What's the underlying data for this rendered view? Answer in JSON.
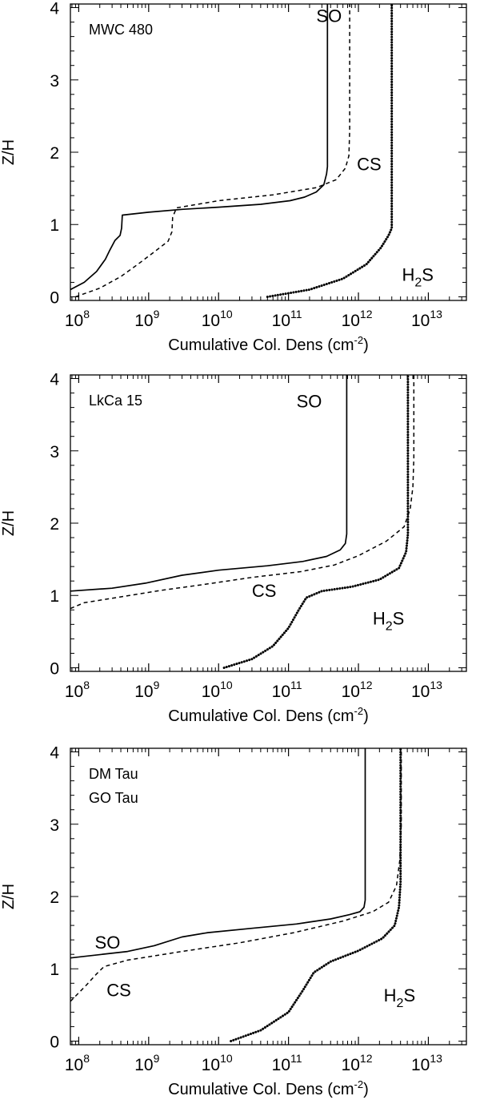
{
  "chart_data": [
    {
      "type": "line",
      "annotation_lines": [
        "MWC 480"
      ],
      "xlabel": "Cumulative Col. Dens (cm",
      "xlabel_sup": "-2",
      "xlabel_end": ")",
      "ylabel": "Z/H",
      "xscale": "log",
      "xlim": [
        76000000.0,
        35000000000000.0
      ],
      "ylim": [
        -0.05,
        4.05
      ],
      "x_ticks": [
        {
          "mant": "10",
          "exp": "8",
          "value": 100000000.0
        },
        {
          "mant": "10",
          "exp": "9",
          "value": 1000000000.0
        },
        {
          "mant": "10",
          "exp": "10",
          "value": 10000000000.0
        },
        {
          "mant": "10",
          "exp": "11",
          "value": 100000000000.0
        },
        {
          "mant": "10",
          "exp": "12",
          "value": 1000000000000.0
        },
        {
          "mant": "10",
          "exp": "13",
          "value": 10000000000000.0
        }
      ],
      "y_ticks": [
        {
          "label": "0",
          "value": 0
        },
        {
          "label": "1",
          "value": 1
        },
        {
          "label": "2",
          "value": 2
        },
        {
          "label": "3",
          "value": 3
        },
        {
          "label": "4",
          "value": 4
        }
      ],
      "series": [
        {
          "name": "SO",
          "line_style": "solid",
          "label_at": [
            250000000000.0,
            3.8
          ],
          "x": [
            76000000.0,
            120000000.0,
            180000000.0,
            240000000.0,
            280000000.0,
            330000000.0,
            390000000.0,
            410000000.0,
            420000000.0,
            1000000000.0,
            3000000000.0,
            10000000000.0,
            40000000000.0,
            105000000000.0,
            170000000000.0,
            250000000000.0,
            320000000000.0,
            350000000000.0,
            360000000000.0,
            360000000000.0
          ],
          "y": [
            0.1,
            0.2,
            0.35,
            0.52,
            0.65,
            0.78,
            0.85,
            0.95,
            1.13,
            1.17,
            1.21,
            1.24,
            1.28,
            1.33,
            1.38,
            1.45,
            1.55,
            1.7,
            1.8,
            4.05
          ]
        },
        {
          "name": "CS",
          "line_style": "dashed",
          "label_at": [
            950000000000.0,
            1.75
          ],
          "x": [
            90000000.0,
            200000000.0,
            400000000.0,
            700000000.0,
            1200000000.0,
            1900000000.0,
            2150000000.0,
            2200000000.0,
            2500000000.0,
            10000000000.0,
            60000000000.0,
            250000000000.0,
            480000000000.0,
            650000000000.0,
            730000000000.0,
            750000000000.0,
            750000000000.0
          ],
          "y": [
            0.0,
            0.12,
            0.28,
            0.45,
            0.62,
            0.77,
            0.9,
            1.1,
            1.23,
            1.33,
            1.41,
            1.51,
            1.62,
            1.78,
            1.95,
            2.3,
            4.05
          ]
        },
        {
          "name": "H",
          "label_sub": "2",
          "label_end": "S",
          "line_style": "dotted",
          "label_at": [
            4200000000000.0,
            0.22
          ],
          "x": [
            50000000000.0,
            200000000000.0,
            600000000000.0,
            1300000000000.0,
            2100000000000.0,
            2700000000000.0,
            3000000000000.0,
            3000000000000.0
          ],
          "y": [
            0.0,
            0.1,
            0.25,
            0.45,
            0.68,
            0.85,
            0.95,
            4.05
          ]
        }
      ]
    },
    {
      "type": "line",
      "annotation_lines": [
        "LkCa 15"
      ],
      "xlabel": "Cumulative Col. Dens (cm",
      "xlabel_sup": "-2",
      "xlabel_end": ")",
      "ylabel": "Z/H",
      "xscale": "log",
      "xlim": [
        76000000.0,
        35000000000000.0
      ],
      "ylim": [
        -0.05,
        4.05
      ],
      "x_ticks": [
        {
          "mant": "10",
          "exp": "8",
          "value": 100000000.0
        },
        {
          "mant": "10",
          "exp": "9",
          "value": 1000000000.0
        },
        {
          "mant": "10",
          "exp": "10",
          "value": 10000000000.0
        },
        {
          "mant": "10",
          "exp": "11",
          "value": 100000000000.0
        },
        {
          "mant": "10",
          "exp": "12",
          "value": 1000000000000.0
        },
        {
          "mant": "10",
          "exp": "13",
          "value": 10000000000000.0
        }
      ],
      "y_ticks": [
        {
          "label": "0",
          "value": 0
        },
        {
          "label": "1",
          "value": 1
        },
        {
          "label": "2",
          "value": 2
        },
        {
          "label": "3",
          "value": 3
        },
        {
          "label": "4",
          "value": 4
        }
      ],
      "series": [
        {
          "name": "SO",
          "line_style": "solid",
          "label_at": [
            130000000000.0,
            3.6
          ],
          "x": [
            76000000.0,
            300000000.0,
            900000000.0,
            3000000000.0,
            10000000000.0,
            50000000000.0,
            160000000000.0,
            350000000000.0,
            550000000000.0,
            650000000000.0,
            680000000000.0,
            680000000000.0
          ],
          "y": [
            1.06,
            1.1,
            1.17,
            1.28,
            1.35,
            1.41,
            1.47,
            1.54,
            1.63,
            1.72,
            1.85,
            4.05
          ]
        },
        {
          "name": "CS",
          "line_style": "dashed",
          "label_at": [
            30000000000.0,
            0.98
          ],
          "x": [
            76000000.0,
            120000000.0,
            400000000.0,
            1500000000.0,
            6000000000.0,
            30000000000.0,
            150000000000.0,
            450000000000.0,
            1000000000000.0,
            2500000000000.0,
            4500000000000.0,
            5500000000000.0,
            6000000000000.0,
            6200000000000.0,
            6200000000000.0
          ],
          "y": [
            0.82,
            0.9,
            0.98,
            1.07,
            1.15,
            1.25,
            1.33,
            1.42,
            1.55,
            1.75,
            1.95,
            2.2,
            2.5,
            2.9,
            4.05
          ]
        },
        {
          "name": "H",
          "label_sub": "2",
          "label_end": "S",
          "line_style": "dotted",
          "label_at": [
            1600000000000.0,
            0.6
          ],
          "x": [
            12000000000.0,
            30000000000.0,
            60000000000.0,
            100000000000.0,
            140000000000.0,
            180000000000.0,
            300000000000.0,
            800000000000.0,
            2000000000000.0,
            3800000000000.0,
            4800000000000.0,
            5100000000000.0,
            5100000000000.0
          ],
          "y": [
            0.0,
            0.12,
            0.3,
            0.55,
            0.8,
            0.97,
            1.06,
            1.12,
            1.22,
            1.38,
            1.6,
            1.85,
            4.05
          ]
        }
      ]
    },
    {
      "type": "line",
      "annotation_lines": [
        "DM Tau",
        "GO Tau"
      ],
      "xlabel": "Cumulative Col. Dens (cm",
      "xlabel_sup": "-2",
      "xlabel_end": ")",
      "ylabel": "Z/H",
      "xscale": "log",
      "xlim": [
        76000000.0,
        35000000000000.0
      ],
      "ylim": [
        -0.05,
        4.05
      ],
      "x_ticks": [
        {
          "mant": "10",
          "exp": "8",
          "value": 100000000.0
        },
        {
          "mant": "10",
          "exp": "9",
          "value": 1000000000.0
        },
        {
          "mant": "10",
          "exp": "10",
          "value": 10000000000.0
        },
        {
          "mant": "10",
          "exp": "11",
          "value": 100000000000.0
        },
        {
          "mant": "10",
          "exp": "12",
          "value": 1000000000000.0
        },
        {
          "mant": "10",
          "exp": "13",
          "value": 10000000000000.0
        }
      ],
      "y_ticks": [
        {
          "label": "0",
          "value": 0
        },
        {
          "label": "1",
          "value": 1
        },
        {
          "label": "2",
          "value": 2
        },
        {
          "label": "3",
          "value": 3
        },
        {
          "label": "4",
          "value": 4
        }
      ],
      "series": [
        {
          "name": "SO",
          "line_style": "solid",
          "label_at": [
            170000000.0,
            1.28
          ],
          "x": [
            76000000.0,
            500000000.0,
            1200000000.0,
            3000000000.0,
            7000000000.0,
            30000000000.0,
            130000000000.0,
            400000000000.0,
            750000000000.0,
            1050000000000.0,
            1200000000000.0,
            1250000000000.0,
            1250000000000.0
          ],
          "y": [
            1.15,
            1.24,
            1.32,
            1.44,
            1.5,
            1.56,
            1.62,
            1.69,
            1.75,
            1.79,
            1.85,
            1.95,
            4.05
          ]
        },
        {
          "name": "CS",
          "line_style": "dashed",
          "label_at": [
            250000000.0,
            0.62
          ],
          "x": [
            76000000.0,
            130000000.0,
            180000000.0,
            230000000.0,
            500000000.0,
            3000000000.0,
            20000000000.0,
            120000000000.0,
            600000000000.0,
            1600000000000.0,
            2700000000000.0,
            3500000000000.0,
            3900000000000.0,
            4100000000000.0,
            4100000000000.0
          ],
          "y": [
            0.55,
            0.78,
            0.93,
            1.03,
            1.12,
            1.24,
            1.36,
            1.5,
            1.66,
            1.79,
            1.92,
            2.15,
            2.5,
            3.0,
            4.05
          ]
        },
        {
          "name": "H",
          "label_sub": "2",
          "label_end": "S",
          "line_style": "dotted",
          "label_at": [
            2300000000000.0,
            0.55
          ],
          "x": [
            15000000000.0,
            40000000000.0,
            100000000000.0,
            160000000000.0,
            230000000000.0,
            400000000000.0,
            1000000000000.0,
            2200000000000.0,
            3300000000000.0,
            3800000000000.0,
            4000000000000.0,
            4000000000000.0
          ],
          "y": [
            0.0,
            0.15,
            0.4,
            0.7,
            0.95,
            1.1,
            1.25,
            1.42,
            1.6,
            1.85,
            2.2,
            4.05
          ]
        }
      ]
    }
  ]
}
